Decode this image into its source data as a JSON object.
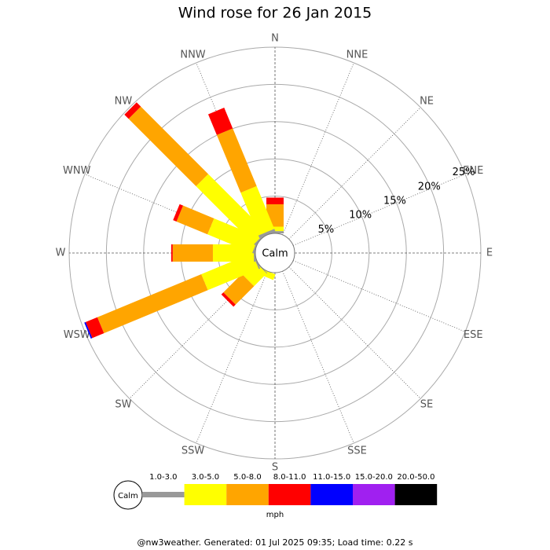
{
  "chart_data": {
    "type": "windrose",
    "title": "Wind rose for 26 Jan 2015",
    "directions": [
      "N",
      "NNE",
      "NE",
      "ENE",
      "E",
      "ESE",
      "SE",
      "SSE",
      "S",
      "SSW",
      "SW",
      "WSW",
      "W",
      "WNW",
      "NW",
      "NNW"
    ],
    "calm_label": "Calm",
    "rlim": [
      0,
      25
    ],
    "rticks": [
      {
        "value": 5,
        "label": "5%"
      },
      {
        "value": 10,
        "label": "10%"
      },
      {
        "value": 15,
        "label": "15%"
      },
      {
        "value": 20,
        "label": "20%"
      },
      {
        "value": 25,
        "label": "25%"
      }
    ],
    "series": [
      {
        "name": "1.0-3.0",
        "color": "#999999",
        "values": [
          0.3,
          0,
          0,
          0,
          0,
          0,
          0,
          0,
          0,
          0,
          0.1,
          0.2,
          0.2,
          0.2,
          0.2,
          0.4
        ]
      },
      {
        "name": "3.0-5.0",
        "color": "#ffff00",
        "values": [
          0.6,
          0,
          0,
          0,
          0,
          0,
          0,
          0,
          0,
          0.8,
          2.4,
          7.4,
          5.5,
          6.5,
          11.0,
          6.2
        ]
      },
      {
        "name": "5.0-8.0",
        "color": "#ffa500",
        "values": [
          3.0,
          0,
          0,
          0,
          0,
          0,
          0,
          0,
          0,
          0,
          3.5,
          15.1,
          5.4,
          4.5,
          12.8,
          8.4
        ]
      },
      {
        "name": "8.0-11.0",
        "color": "#ff0000",
        "values": [
          0.9,
          0,
          0,
          0,
          0,
          0,
          0,
          0,
          0,
          0,
          0.4,
          1.7,
          0.2,
          0.5,
          0.8,
          3.0
        ]
      },
      {
        "name": "11.0-15.0",
        "color": "#0000ff",
        "values": [
          0,
          0,
          0,
          0,
          0,
          0,
          0,
          0,
          0,
          0,
          0,
          0.2,
          0,
          0,
          0,
          0
        ]
      },
      {
        "name": "15.0-20.0",
        "color": "#a020f0",
        "values": [
          0,
          0,
          0,
          0,
          0,
          0,
          0,
          0,
          0,
          0,
          0,
          0,
          0,
          0,
          0,
          0
        ]
      },
      {
        "name": "20.0-50.0",
        "color": "#000000",
        "values": [
          0,
          0,
          0,
          0,
          0,
          0,
          0,
          0,
          0,
          0,
          0,
          0,
          0,
          0,
          0,
          0
        ]
      }
    ],
    "unit": "mph",
    "footer": "@nw3weather. Generated: 01 Jul 2025 09:35; Load time: 0.22 s"
  }
}
